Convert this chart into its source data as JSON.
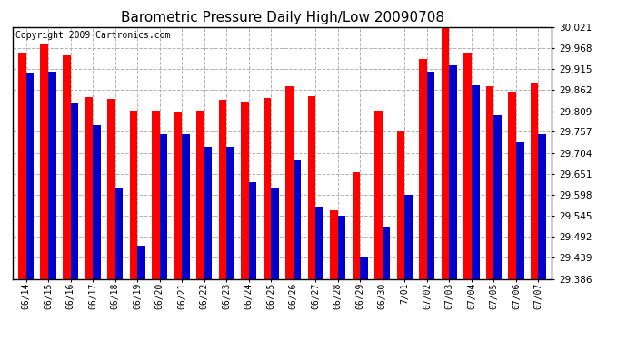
{
  "title": "Barometric Pressure Daily High/Low 20090708",
  "copyright": "Copyright 2009 Cartronics.com",
  "dates": [
    "06/14",
    "06/15",
    "06/16",
    "06/17",
    "06/18",
    "06/19",
    "06/20",
    "06/21",
    "06/22",
    "06/23",
    "06/24",
    "06/25",
    "06/26",
    "06/27",
    "06/28",
    "06/29",
    "06/30",
    "7/01",
    "07/02",
    "07/03",
    "07/04",
    "07/05",
    "07/06",
    "07/07"
  ],
  "highs": [
    29.955,
    29.98,
    29.95,
    29.845,
    29.84,
    29.81,
    29.81,
    29.808,
    29.81,
    29.838,
    29.83,
    29.843,
    29.872,
    29.848,
    29.558,
    29.655,
    29.81,
    29.757,
    29.94,
    30.018,
    29.955,
    29.872,
    29.857,
    29.878
  ],
  "lows": [
    29.905,
    29.91,
    29.828,
    29.775,
    29.615,
    29.47,
    29.75,
    29.75,
    29.718,
    29.718,
    29.63,
    29.615,
    29.685,
    29.568,
    29.545,
    29.44,
    29.518,
    29.598,
    29.91,
    29.925,
    29.875,
    29.8,
    29.73,
    29.752
  ],
  "ymin": 29.386,
  "ymax": 30.021,
  "yticks": [
    29.386,
    29.439,
    29.492,
    29.545,
    29.598,
    29.651,
    29.704,
    29.757,
    29.809,
    29.862,
    29.915,
    29.968,
    30.021
  ],
  "bar_color_high": "#ff0000",
  "bar_color_low": "#0000cc",
  "bg_color": "#ffffff",
  "grid_color": "#b0b0b0",
  "title_fontsize": 11,
  "copyright_fontsize": 7
}
